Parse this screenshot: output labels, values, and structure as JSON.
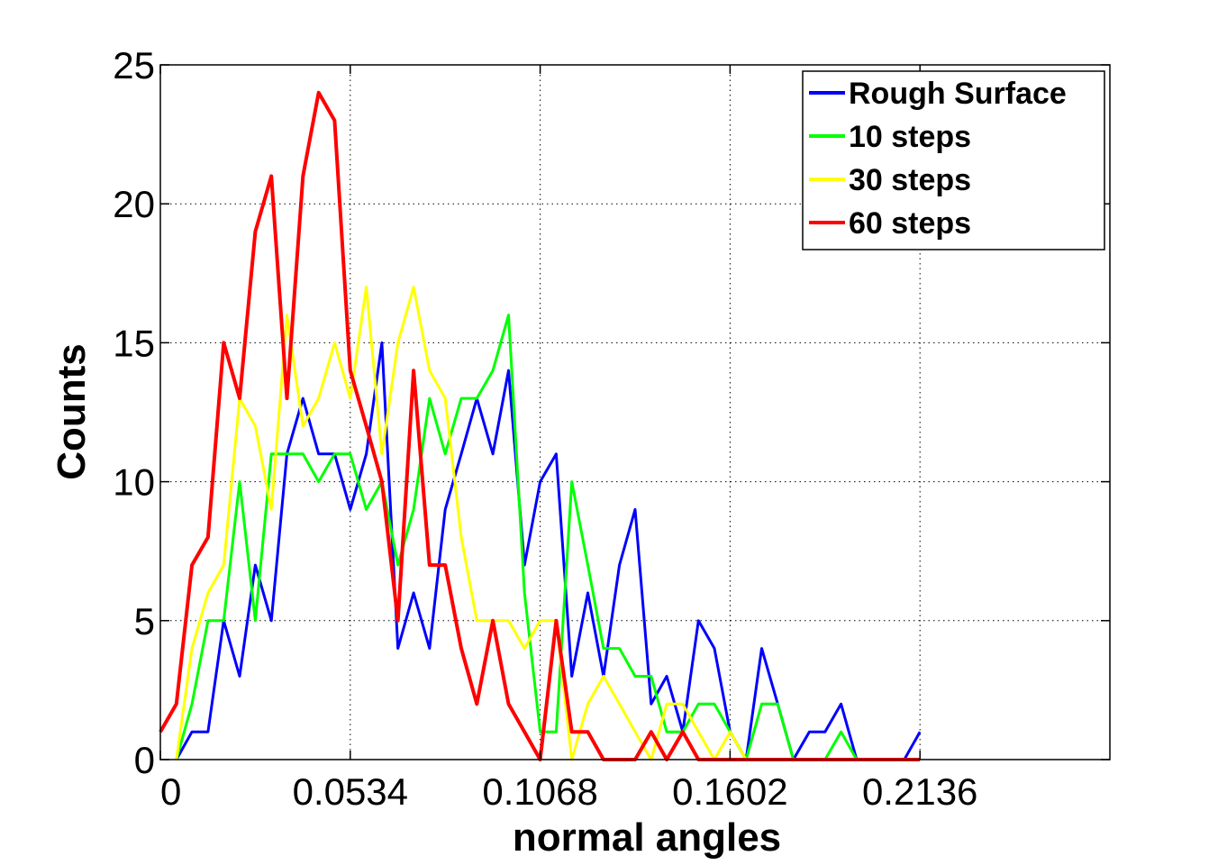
{
  "chart_data": {
    "type": "line",
    "title": "",
    "xlabel": "normal angles",
    "ylabel": "Counts",
    "xlim": [
      0,
      0.267
    ],
    "ylim": [
      0,
      25
    ],
    "x_ticks": [
      0,
      0.0534,
      0.1068,
      0.1602,
      0.2136
    ],
    "x_tick_labels": [
      "0",
      "0.0534",
      "0.1068",
      "0.1602",
      "0.2136"
    ],
    "y_ticks": [
      0,
      5,
      10,
      15,
      20,
      25
    ],
    "y_tick_labels": [
      "0",
      "5",
      "10",
      "15",
      "20",
      "25"
    ],
    "grid": true,
    "legend_position": "top-right",
    "x": [
      0.0,
      0.0045,
      0.0089,
      0.0134,
      0.0178,
      0.0223,
      0.0267,
      0.0312,
      0.0356,
      0.0401,
      0.0445,
      0.049,
      0.0534,
      0.0579,
      0.0623,
      0.0668,
      0.0712,
      0.0757,
      0.0801,
      0.0846,
      0.089,
      0.0935,
      0.0979,
      0.1024,
      0.1068,
      0.1113,
      0.1157,
      0.1202,
      0.1246,
      0.1291,
      0.1335,
      0.138,
      0.1424,
      0.1469,
      0.1513,
      0.1558,
      0.1602,
      0.1647,
      0.1691,
      0.1736,
      0.178,
      0.1825,
      0.1869,
      0.1914,
      0.1958,
      0.2003,
      0.2047,
      0.2092,
      0.2136
    ],
    "series": [
      {
        "name": "Rough Surface",
        "color": "#0000ff",
        "values": [
          null,
          0,
          1,
          1,
          5,
          3,
          7,
          5,
          11,
          13,
          11,
          11,
          9,
          11,
          15,
          4,
          6,
          4,
          9,
          11,
          13,
          11,
          14,
          7,
          10,
          11,
          3,
          6,
          3,
          7,
          9,
          2,
          3,
          1,
          5,
          4,
          1,
          0,
          4,
          2,
          0,
          1,
          1,
          2,
          0,
          0,
          0,
          0,
          1
        ]
      },
      {
        "name": "10 steps",
        "color": "#00ff00",
        "values": [
          null,
          0,
          2,
          5,
          5,
          10,
          5,
          11,
          11,
          11,
          10,
          11,
          11,
          9,
          10,
          7,
          9,
          13,
          11,
          13,
          13,
          14,
          16,
          6,
          1,
          1,
          10,
          7,
          4,
          4,
          3,
          3,
          1,
          1,
          2,
          2,
          1,
          0,
          2,
          2,
          0,
          0,
          0,
          1,
          0,
          0,
          0,
          0,
          null
        ]
      },
      {
        "name": "30 steps",
        "color": "#ffff00",
        "values": [
          null,
          0,
          4,
          6,
          7,
          13,
          12,
          9,
          16,
          12,
          13,
          15,
          13,
          17,
          11,
          15,
          17,
          14,
          13,
          8,
          5,
          5,
          5,
          4,
          5,
          5,
          0,
          2,
          3,
          2,
          1,
          0,
          2,
          2,
          1,
          0,
          1,
          0,
          0,
          0,
          0,
          0,
          0,
          0,
          0,
          0,
          0,
          0,
          null
        ]
      },
      {
        "name": "60 steps",
        "color": "#ff0000",
        "values": [
          1,
          2,
          7,
          8,
          15,
          13,
          19,
          21,
          13,
          21,
          24,
          23,
          14,
          12,
          10,
          5,
          14,
          7,
          7,
          4,
          2,
          5,
          2,
          1,
          0,
          5,
          1,
          1,
          0,
          0,
          0,
          1,
          0,
          1,
          0,
          0,
          0,
          0,
          0,
          0,
          0,
          0,
          0,
          0,
          0,
          0,
          0,
          0,
          0
        ]
      }
    ]
  }
}
